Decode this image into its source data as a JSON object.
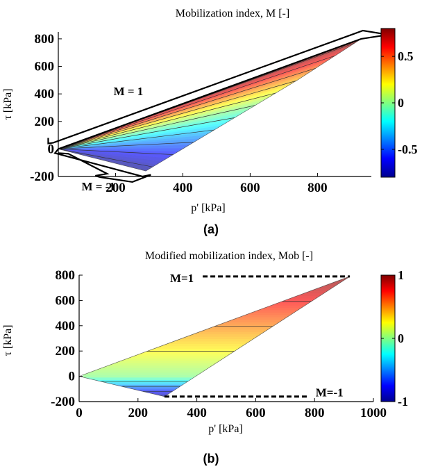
{
  "chart_data": [
    {
      "panel_label": "(a)",
      "type": "heatmap",
      "title": "Mobilization index, M  [-]",
      "xlabel": "p' [kPa]",
      "ylabel": "τ [kPa]",
      "x_ticks": [
        200,
        400,
        600,
        800
      ],
      "y_ticks": [
        -200,
        0,
        200,
        400,
        600,
        800
      ],
      "y_tick_labels": [
        "-200",
        "0",
        "200",
        "400",
        "600",
        "800"
      ],
      "xlim": [
        30,
        960
      ],
      "ylim": [
        -200,
        850
      ],
      "region_vertices": [
        [
          30,
          0
        ],
        [
          930,
          800
        ],
        [
          740,
          500
        ],
        [
          290,
          -160
        ]
      ],
      "contour_levels": [
        -0.75,
        -0.6,
        -0.45,
        -0.3,
        -0.15,
        0,
        0.15,
        0.3,
        0.45,
        0.6,
        0.75
      ],
      "colorbar": {
        "min": -0.8,
        "max": 0.8,
        "ticks": [
          0.5,
          0,
          -0.5
        ],
        "tick_labels": [
          "0.5",
          "0",
          "-0.5"
        ]
      },
      "boundary_annotations": [
        {
          "text": "M = 1",
          "at": [
            300,
            450
          ]
        },
        {
          "text": "M = -1",
          "at": [
            120,
            -240
          ]
        }
      ]
    },
    {
      "panel_label": "(b)",
      "type": "heatmap",
      "title": "Modified mobilization index, Mob [-]",
      "xlabel": "p' [kPa]",
      "ylabel": "τ [kPa]",
      "x_ticks": [
        0,
        200,
        400,
        600,
        800,
        1000
      ],
      "y_ticks": [
        -200,
        0,
        200,
        400,
        600,
        800
      ],
      "y_tick_labels": [
        "-200",
        "0",
        "200",
        "400",
        "600",
        "800"
      ],
      "xlim": [
        0,
        1000
      ],
      "ylim": [
        -200,
        800
      ],
      "region_vertices": [
        [
          0,
          0
        ],
        [
          920,
          790
        ],
        [
          290,
          -160
        ]
      ],
      "contour_levels": [
        -0.75,
        -0.5,
        -0.25,
        0.25,
        0.5,
        0.75
      ],
      "colorbar": {
        "min": -1,
        "max": 1,
        "ticks": [
          1,
          0,
          -1
        ],
        "tick_labels": [
          "1",
          "0",
          "-1"
        ]
      },
      "annotations": [
        {
          "text": "M=1",
          "y": 790,
          "x_from": 420,
          "x_to": 920
        },
        {
          "text": "M=-1",
          "y": -160,
          "x_from": 290,
          "x_to": 780
        }
      ]
    }
  ]
}
